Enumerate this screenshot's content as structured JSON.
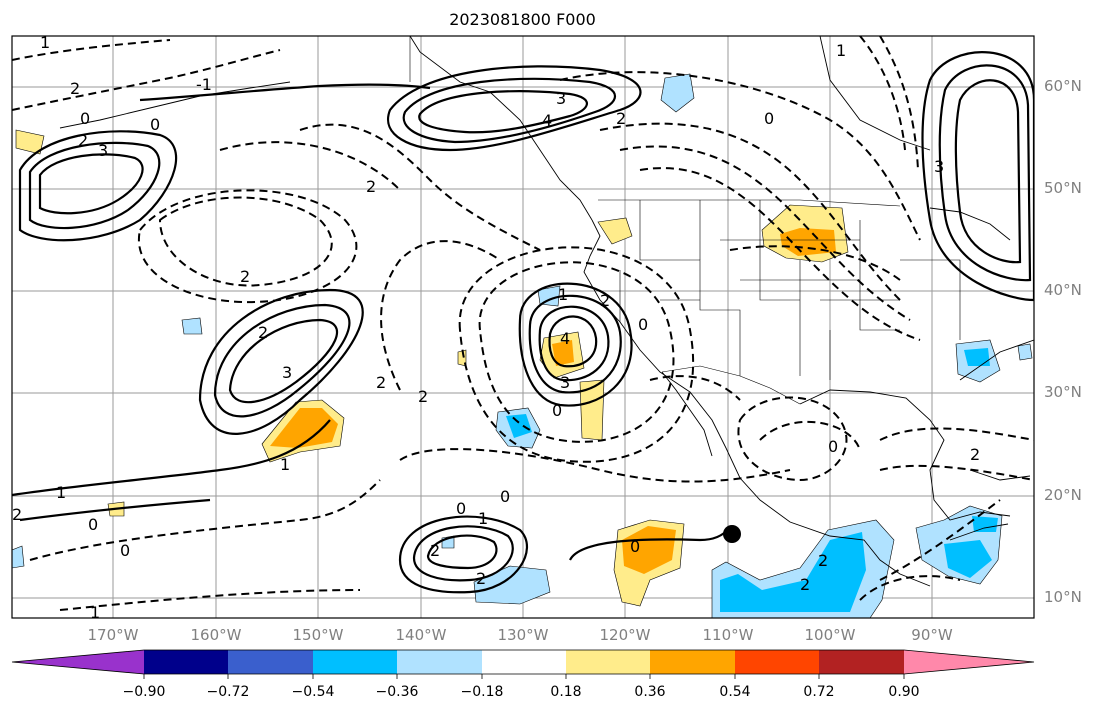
{
  "title": "2023081800 F000",
  "lat_labels": [
    "60°N",
    "50°N",
    "40°N",
    "30°N",
    "20°N",
    "10°N"
  ],
  "lon_labels": [
    "170°W",
    "160°W",
    "150°W",
    "140°W",
    "130°W",
    "120°W",
    "110°W",
    "100°W",
    "90°W"
  ],
  "colorbar": {
    "ticks": [
      "−0.90",
      "−0.72",
      "−0.54",
      "−0.36",
      "−0.18",
      "0.18",
      "0.36",
      "0.54",
      "0.72",
      "0.90"
    ],
    "colors": [
      "#9932cc",
      "#00008b",
      "#3a5fcd",
      "#00bfff",
      "#b0e2ff",
      "#ffffff",
      "#ffec8b",
      "#ffa500",
      "#ff4500",
      "#b22222",
      "#ff88aa"
    ]
  },
  "contour_labels": [
    "2",
    "0",
    "2",
    "3",
    "0",
    "-1",
    "4",
    "3",
    "2",
    "0",
    "1",
    "3",
    "2",
    "1",
    "2",
    "2",
    "2",
    "3",
    "1",
    "2",
    "4",
    "3",
    "0",
    "2",
    "0",
    "0",
    "0",
    "1",
    "2",
    "2",
    "0",
    "2",
    "0",
    "2",
    "2",
    "1",
    "0",
    "1",
    "2",
    "1",
    "0"
  ],
  "marker": "storm-center"
}
